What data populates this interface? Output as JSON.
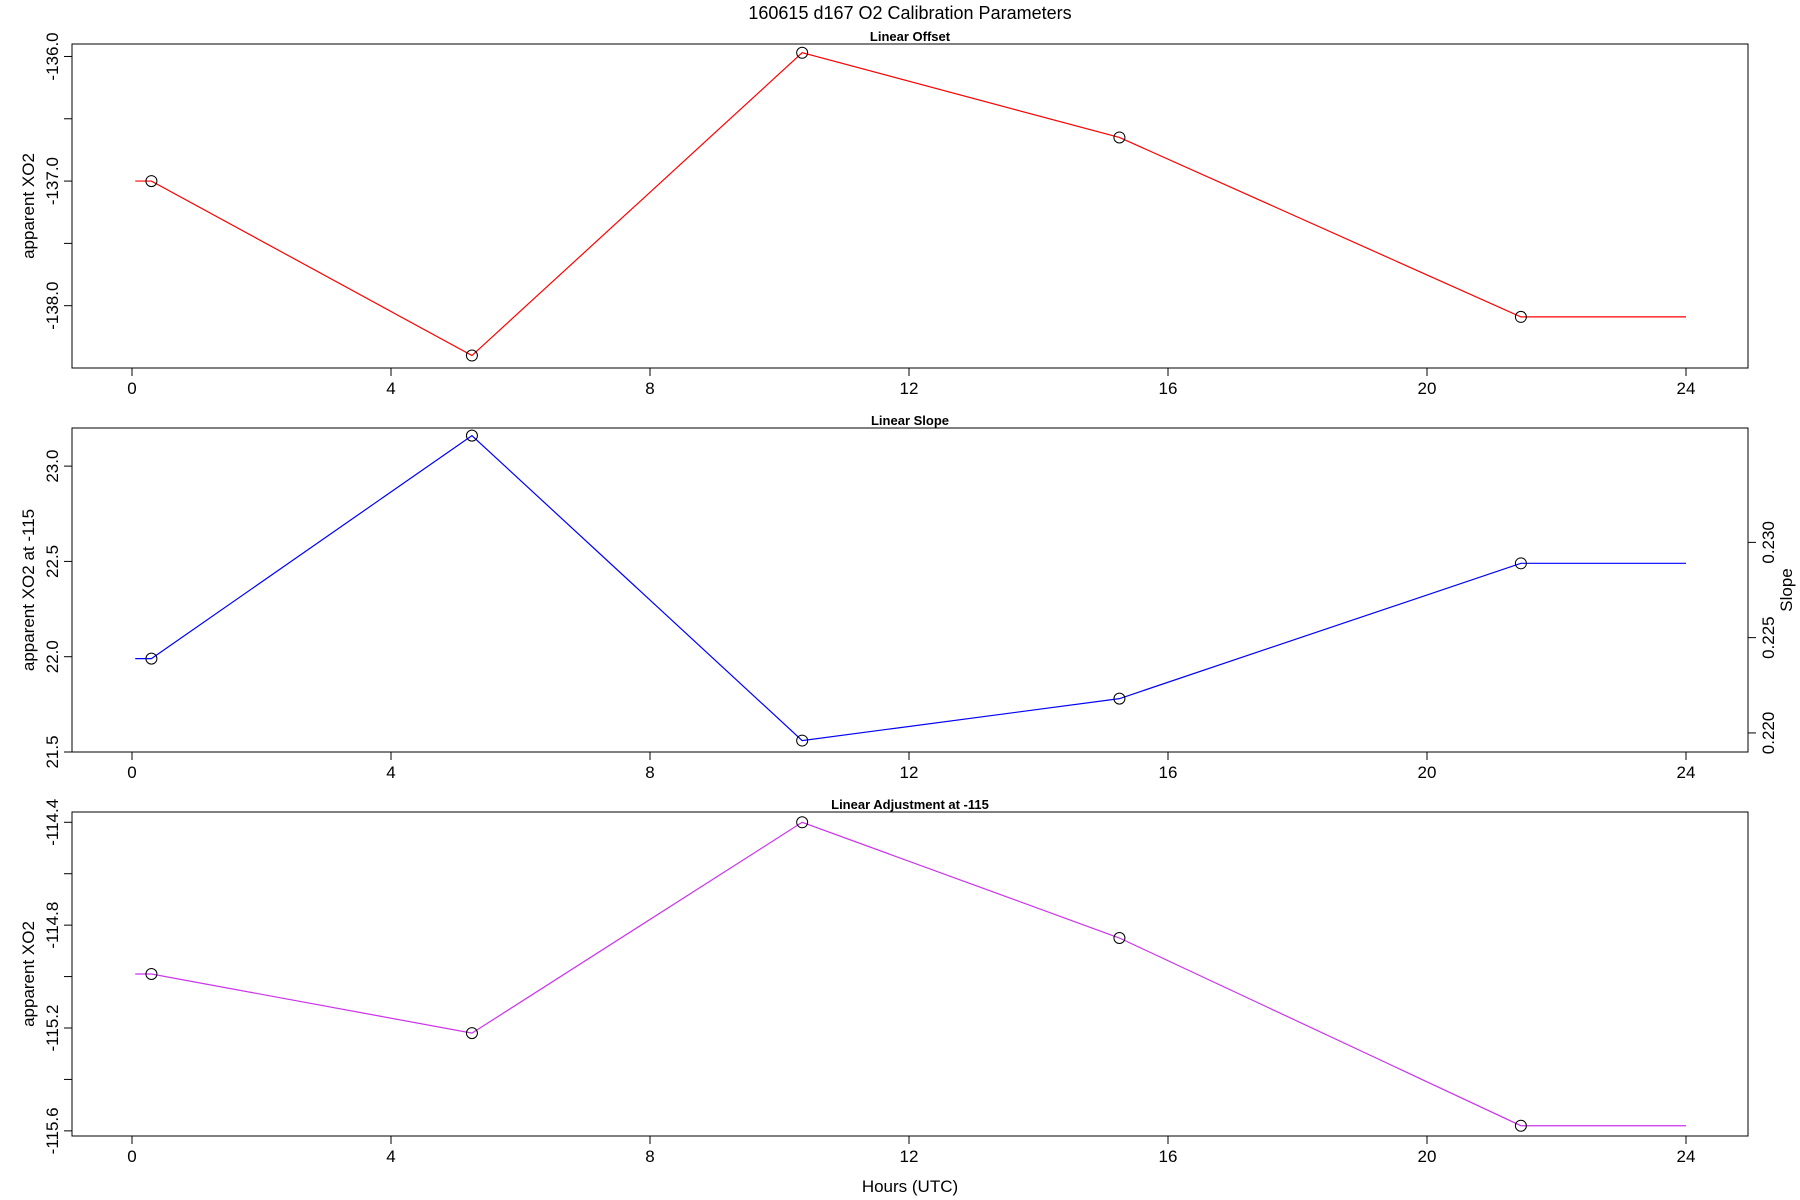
{
  "title": "160615   d167   O2 Calibration Parameters",
  "xlabel": "Hours (UTC)",
  "chart_data": [
    {
      "type": "line",
      "title": "Linear Offset",
      "xlabel": "",
      "ylabel": "apparent XO2",
      "color": "#ff0000",
      "xlim": [
        0,
        24
      ],
      "ylim": [
        -138.5,
        -135.9
      ],
      "x_ticks": [
        0,
        4,
        8,
        12,
        16,
        20,
        24
      ],
      "y_ticks": [
        -136.0,
        -137.0,
        -138.0
      ],
      "y_tick_labels": [
        "-136.0",
        "-137.0",
        "-138.0"
      ],
      "y_minor_ticks": [
        -136.5,
        -137.5
      ],
      "x": [
        0.3,
        5.25,
        10.35,
        15.25,
        21.45
      ],
      "values": [
        -137.0,
        -138.4,
        -135.97,
        -136.65,
        -138.09
      ],
      "line_x": [
        0.05,
        0.3,
        5.25,
        10.35,
        15.25,
        21.45,
        24.0
      ],
      "line_values": [
        -137.0,
        -137.0,
        -138.4,
        -135.97,
        -136.65,
        -138.09,
        -138.09
      ],
      "grid": false
    },
    {
      "type": "line",
      "title": "Linear Slope",
      "xlabel": "",
      "ylabel": "apparent XO2 at -115",
      "y2label": "Slope",
      "color": "#0000ff",
      "xlim": [
        0,
        24
      ],
      "ylim": [
        21.5,
        23.2
      ],
      "x_ticks": [
        0,
        4,
        8,
        12,
        16,
        20,
        24
      ],
      "y_ticks": [
        21.5,
        22.0,
        22.5,
        23.0
      ],
      "y_tick_labels": [
        "21.5",
        "22.0",
        "22.5",
        "23.0"
      ],
      "y2_ticks": [
        0.22,
        0.225,
        0.23
      ],
      "y2_tick_labels": [
        "0.220",
        "0.225",
        "0.230"
      ],
      "y2_tick_positions": [
        21.6,
        22.1,
        22.6
      ],
      "x": [
        0.3,
        5.25,
        10.35,
        15.25,
        21.45
      ],
      "values": [
        21.99,
        23.16,
        21.56,
        21.78,
        22.49
      ],
      "line_x": [
        0.05,
        0.3,
        5.25,
        10.35,
        15.25,
        21.45,
        24.0
      ],
      "line_values": [
        21.99,
        21.99,
        23.16,
        21.56,
        21.78,
        22.49,
        22.49
      ],
      "grid": false
    },
    {
      "type": "line",
      "title": "Linear Adjustment at -115",
      "xlabel": "Hours (UTC)",
      "ylabel": "apparent XO2",
      "color": "#cc33ee",
      "xlim": [
        0,
        24
      ],
      "ylim": [
        -115.62,
        -114.36
      ],
      "x_ticks": [
        0,
        4,
        8,
        12,
        16,
        20,
        24
      ],
      "y_ticks": [
        -114.4,
        -114.8,
        -115.2,
        -115.6
      ],
      "y_tick_labels": [
        "-114.4",
        "-114.8",
        "-115.2",
        "-115.6"
      ],
      "y_minor_ticks": [
        -114.6,
        -115.0,
        -115.4
      ],
      "x": [
        0.3,
        5.25,
        10.35,
        15.25,
        21.45
      ],
      "values": [
        -114.99,
        -115.22,
        -114.4,
        -114.85,
        -115.58
      ],
      "line_x": [
        0.05,
        0.3,
        5.25,
        10.35,
        15.25,
        21.45,
        24.0
      ],
      "line_values": [
        -114.99,
        -114.99,
        -115.22,
        -114.4,
        -114.85,
        -115.58,
        -115.58
      ],
      "grid": false
    }
  ]
}
